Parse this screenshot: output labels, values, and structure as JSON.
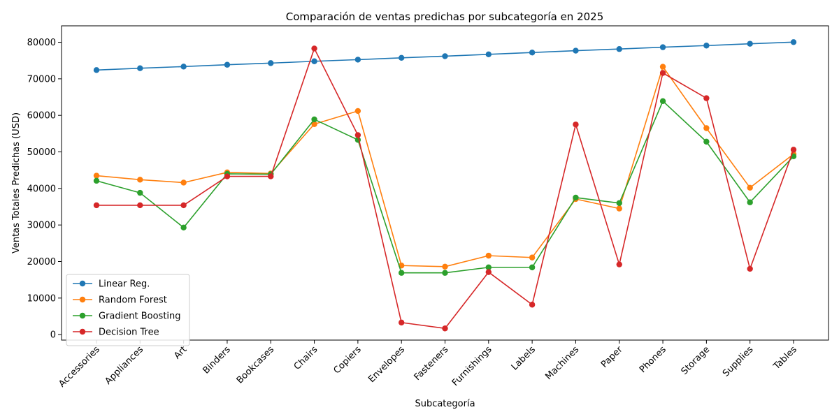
{
  "chart_data": {
    "type": "line",
    "title": "Comparación de ventas predichas por subcategoría en 2025",
    "xlabel": "Subcategoría",
    "ylabel": "Ventas Totales Predichas (USD)",
    "ylim": [
      -1500,
      84500
    ],
    "yticks": [
      0,
      10000,
      20000,
      30000,
      40000,
      50000,
      60000,
      70000,
      80000
    ],
    "grid": false,
    "legend_position": "lower-left",
    "categories": [
      "Accessories",
      "Appliances",
      "Art",
      "Binders",
      "Bookcases",
      "Chairs",
      "Copiers",
      "Envelopes",
      "Fasteners",
      "Furnishings",
      "Labels",
      "Machines",
      "Paper",
      "Phones",
      "Storage",
      "Supplies",
      "Tables"
    ],
    "series": [
      {
        "name": "Linear Reg.",
        "color": "#1f77b4",
        "values": [
          72400,
          72900,
          73350,
          73850,
          74300,
          74800,
          75250,
          75750,
          76200,
          76700,
          77200,
          77700,
          78150,
          78650,
          79100,
          79600,
          80050
        ]
      },
      {
        "name": "Random Forest",
        "color": "#ff7f0e",
        "values": [
          43500,
          42400,
          41600,
          44400,
          44100,
          57600,
          61200,
          18900,
          18600,
          21600,
          21100,
          37100,
          34500,
          73300,
          56500,
          40200,
          49400
        ]
      },
      {
        "name": "Gradient Boosting",
        "color": "#2ca02c",
        "values": [
          42100,
          38800,
          29300,
          44000,
          43900,
          58900,
          53300,
          16900,
          16900,
          18400,
          18400,
          37500,
          36000,
          63900,
          52800,
          36200,
          48800
        ]
      },
      {
        "name": "Decision Tree",
        "color": "#d62728",
        "values": [
          35400,
          35400,
          35400,
          43300,
          43300,
          78300,
          54600,
          3300,
          1700,
          17100,
          8200,
          57500,
          19200,
          71600,
          64700,
          18000,
          50600
        ]
      }
    ]
  }
}
